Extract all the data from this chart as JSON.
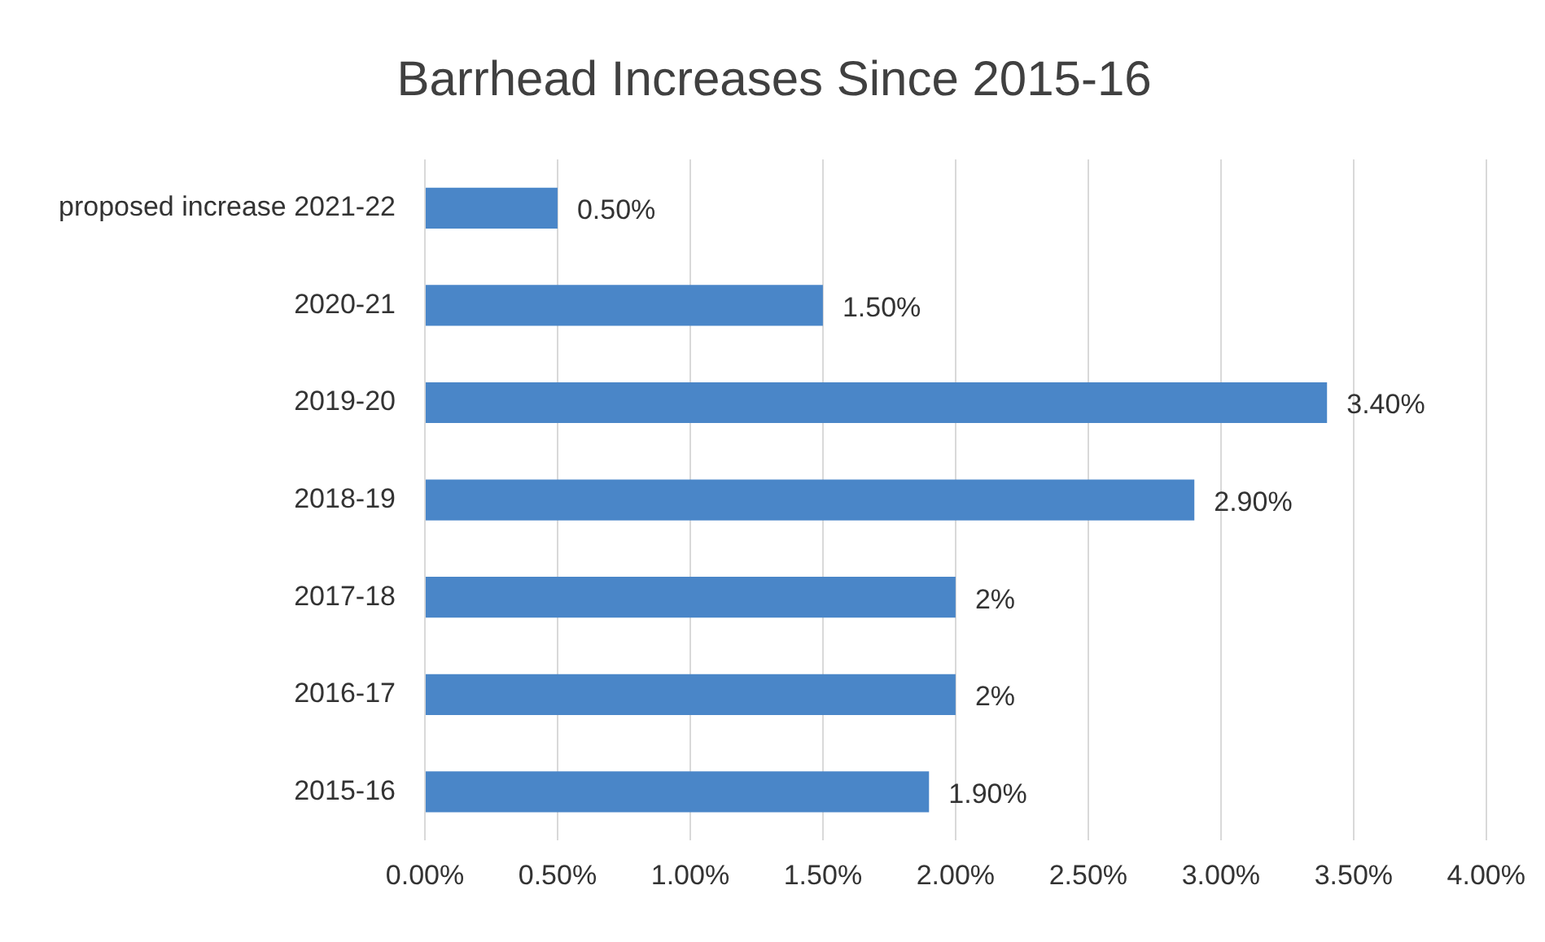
{
  "chart_data": {
    "type": "bar",
    "orientation": "horizontal",
    "title": "Barrhead Increases Since 2015-16",
    "categories": [
      "proposed increase 2021-22",
      "2020-21",
      "2019-20",
      "2018-19",
      "2017-18",
      "2016-17",
      "2015-16"
    ],
    "values": [
      0.5,
      1.5,
      3.4,
      2.9,
      2,
      2,
      1.9
    ],
    "value_labels": [
      "0.50%",
      "1.50%",
      "3.40%",
      "2.90%",
      "2%",
      "2%",
      "1.90%"
    ],
    "color": "#4a86c8",
    "xlim": [
      0,
      4
    ],
    "xticks": [
      {
        "value": 0,
        "label": "0.00%"
      },
      {
        "value": 0.5,
        "label": "0.50%"
      },
      {
        "value": 1,
        "label": "1.00%"
      },
      {
        "value": 1.5,
        "label": "1.50%"
      },
      {
        "value": 2,
        "label": "2.00%"
      },
      {
        "value": 2.5,
        "label": "2.50%"
      },
      {
        "value": 3,
        "label": "3.00%"
      },
      {
        "value": 3.5,
        "label": "3.50%"
      },
      {
        "value": 4,
        "label": "4.00%"
      }
    ],
    "grid": "x",
    "legend": false
  }
}
